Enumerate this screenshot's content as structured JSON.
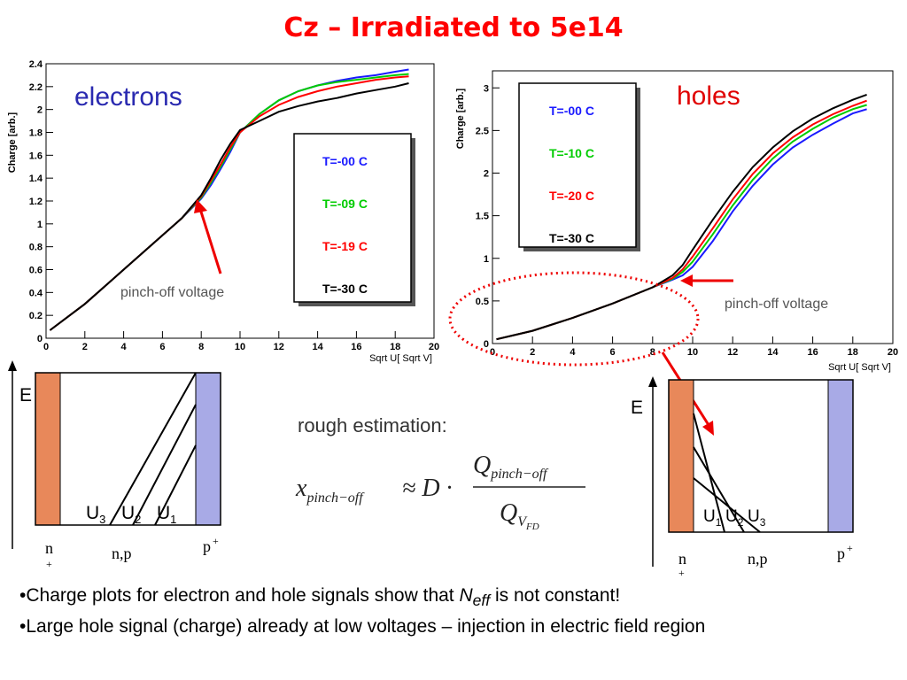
{
  "slide": {
    "title": "Cz – Irradiated to 5e14",
    "bullet1_pre": "•Charge plots for electron and hole signals show that ",
    "bullet1_n": "N",
    "bullet1_sub": "eff",
    "bullet1_post": " is not constant!",
    "bullet2": "•Large hole signal (charge) already at low voltages – injection in electric field region"
  },
  "chart_data": [
    {
      "type": "line",
      "title": "electrons",
      "xlabel": "Sqrt U[ Sqrt V]",
      "ylabel": "Charge [arb.]",
      "xlim": [
        0,
        20
      ],
      "ylim": [
        0,
        2.4
      ],
      "xticks": [
        0,
        2,
        4,
        6,
        8,
        10,
        12,
        14,
        16,
        18,
        20
      ],
      "yticks": [
        0,
        0.2,
        0.4,
        0.6,
        0.8,
        1,
        1.2,
        1.4,
        1.6,
        1.8,
        2,
        2.2,
        2.4
      ],
      "annotation": "pinch-off voltage",
      "legend_placement": "center-right",
      "series": [
        {
          "name": "T=-00 C",
          "color": "#1a1aff",
          "x": [
            0.2,
            2,
            4,
            6,
            7,
            8,
            8.5,
            9,
            9.5,
            10,
            11,
            12,
            13,
            14,
            15,
            16,
            17,
            18,
            18.7
          ],
          "y": [
            0.07,
            0.3,
            0.6,
            0.9,
            1.05,
            1.22,
            1.34,
            1.48,
            1.63,
            1.8,
            1.96,
            2.08,
            2.16,
            2.21,
            2.25,
            2.28,
            2.3,
            2.33,
            2.35
          ]
        },
        {
          "name": "T=-09 C",
          "color": "#00cc00",
          "x": [
            0.2,
            2,
            4,
            6,
            7,
            8,
            8.5,
            9,
            9.5,
            10,
            11,
            12,
            13,
            14,
            15,
            16,
            17,
            18,
            18.7
          ],
          "y": [
            0.07,
            0.3,
            0.6,
            0.9,
            1.05,
            1.23,
            1.36,
            1.5,
            1.65,
            1.8,
            1.96,
            2.08,
            2.16,
            2.21,
            2.24,
            2.26,
            2.28,
            2.3,
            2.31
          ]
        },
        {
          "name": "T=-19 C",
          "color": "#ff0000",
          "x": [
            0.2,
            2,
            4,
            6,
            7,
            8,
            8.5,
            9,
            9.5,
            10,
            11,
            12,
            13,
            14,
            15,
            16,
            17,
            18,
            18.7
          ],
          "y": [
            0.07,
            0.3,
            0.6,
            0.9,
            1.05,
            1.24,
            1.38,
            1.52,
            1.67,
            1.8,
            1.94,
            2.04,
            2.11,
            2.16,
            2.2,
            2.23,
            2.26,
            2.28,
            2.29
          ]
        },
        {
          "name": "T=-30 C",
          "color": "#000000",
          "x": [
            0.2,
            2,
            4,
            6,
            7,
            8,
            8.5,
            9,
            9.5,
            10,
            11,
            12,
            13,
            14,
            15,
            16,
            17,
            18,
            18.7
          ],
          "y": [
            0.07,
            0.3,
            0.6,
            0.9,
            1.05,
            1.25,
            1.4,
            1.56,
            1.7,
            1.82,
            1.9,
            1.98,
            2.03,
            2.07,
            2.1,
            2.14,
            2.17,
            2.2,
            2.23
          ]
        }
      ]
    },
    {
      "type": "line",
      "title": "holes",
      "xlabel": "Sqrt U[ Sqrt V]",
      "ylabel": "Charge [arb.]",
      "xlim": [
        0,
        20
      ],
      "ylim": [
        0,
        3.2
      ],
      "xticks": [
        0,
        2,
        4,
        6,
        8,
        10,
        12,
        14,
        16,
        18,
        20
      ],
      "yticks": [
        0,
        0.5,
        1,
        1.5,
        2,
        2.5,
        3
      ],
      "annotation": "pinch-off voltage",
      "legend_placement": "top-left",
      "series": [
        {
          "name": "T=-00 C",
          "color": "#1a1aff",
          "x": [
            0.2,
            2,
            4,
            6,
            8,
            9,
            9.5,
            10,
            11,
            12,
            13,
            14,
            15,
            16,
            17,
            18,
            18.7
          ],
          "y": [
            0.05,
            0.15,
            0.3,
            0.47,
            0.66,
            0.75,
            0.8,
            0.9,
            1.2,
            1.55,
            1.85,
            2.1,
            2.3,
            2.45,
            2.58,
            2.7,
            2.75
          ]
        },
        {
          "name": "T=-10 C",
          "color": "#00cc00",
          "x": [
            0.2,
            2,
            4,
            6,
            8,
            9,
            9.5,
            10,
            11,
            12,
            13,
            14,
            15,
            16,
            17,
            18,
            18.7
          ],
          "y": [
            0.05,
            0.15,
            0.3,
            0.47,
            0.66,
            0.76,
            0.84,
            0.96,
            1.28,
            1.62,
            1.92,
            2.17,
            2.37,
            2.52,
            2.65,
            2.75,
            2.8
          ]
        },
        {
          "name": "T=-20 C",
          "color": "#ff0000",
          "x": [
            0.2,
            2,
            4,
            6,
            8,
            9,
            9.5,
            10,
            11,
            12,
            13,
            14,
            15,
            16,
            17,
            18,
            18.7
          ],
          "y": [
            0.05,
            0.15,
            0.3,
            0.47,
            0.66,
            0.77,
            0.87,
            1.02,
            1.35,
            1.69,
            1.99,
            2.23,
            2.42,
            2.57,
            2.69,
            2.79,
            2.85
          ]
        },
        {
          "name": "T=-30 C",
          "color": "#000000",
          "x": [
            0.2,
            2,
            4,
            6,
            8,
            9,
            9.5,
            10,
            11,
            12,
            13,
            14,
            15,
            16,
            17,
            18,
            18.7
          ],
          "y": [
            0.05,
            0.15,
            0.3,
            0.47,
            0.66,
            0.8,
            0.92,
            1.1,
            1.45,
            1.78,
            2.07,
            2.3,
            2.49,
            2.64,
            2.76,
            2.86,
            2.92
          ]
        }
      ]
    }
  ],
  "diagram_left": {
    "e_label": "E",
    "u_labels": [
      {
        "main": "U",
        "sub": "3"
      },
      {
        "main": "U",
        "sub": "2"
      },
      {
        "main": "U",
        "sub": "1"
      }
    ],
    "n_label": "n",
    "n_plus": "+",
    "np_label": "n,p",
    "p_label": "p",
    "p_plus": "+",
    "n_color": "#e8885a",
    "p_color": "#a8aae6"
  },
  "diagram_right": {
    "e_label": "E",
    "u_labels": [
      {
        "main": "U",
        "sub": "1"
      },
      {
        "main": "U",
        "sub": "2"
      },
      {
        "main": "U",
        "sub": "3"
      }
    ],
    "n_label": "n",
    "n_plus": "+",
    "np_label": "n,p",
    "p_label": "p",
    "p_plus": "+"
  },
  "formula": {
    "heading": "rough estimation:",
    "x": "x",
    "x_sub": "pinch−off",
    "approx": "≈ D ·",
    "q": "Q",
    "num_sub": "pinch−off",
    "den_sub": "V",
    "den_subsub": "FD"
  }
}
